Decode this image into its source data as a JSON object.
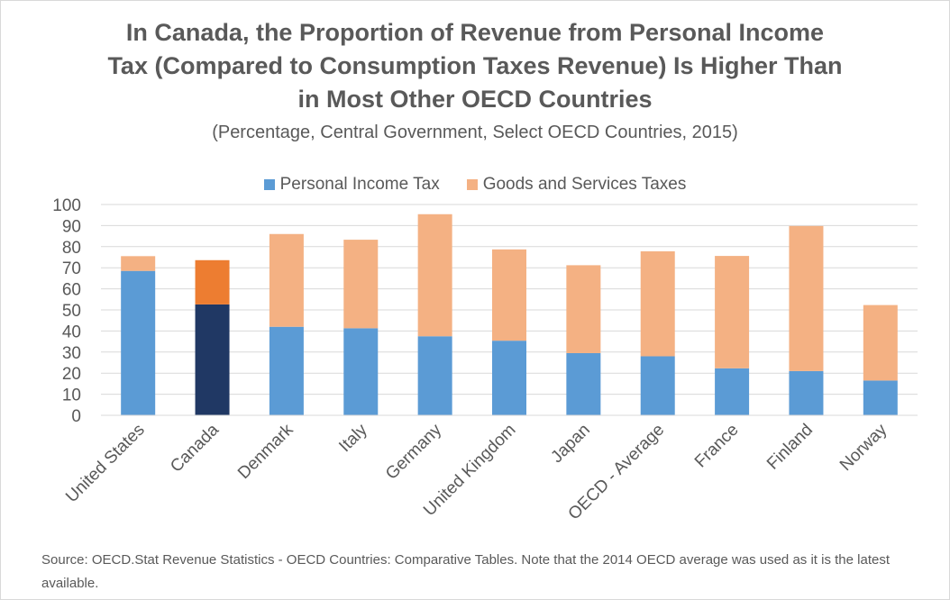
{
  "colors": {
    "income": "#5b9bd5",
    "goods": "#f4b183",
    "income_highlight": "#203864",
    "goods_highlight": "#ed7d31",
    "grid": "#d9d9d9",
    "text": "#595959"
  },
  "chart_data": {
    "type": "bar",
    "stacked": true,
    "title": "In Canada, the Proportion of Revenue from Personal Income Tax (Compared to Consumption Taxes Revenue) Is Higher Than in Most Other OECD Countries",
    "title_lines": [
      "In Canada, the Proportion of Revenue from Personal Income",
      "Tax (Compared to Consumption Taxes Revenue) Is Higher Than",
      "in Most Other OECD Countries"
    ],
    "subtitle": "(Percentage, Central Government, Select OECD Countries, 2015)",
    "categories": [
      "United States",
      "Canada",
      "Denmark",
      "Italy",
      "Germany",
      "United Kingdom",
      "Japan",
      "OECD - Average",
      "France",
      "Finland",
      "Norway"
    ],
    "highlight_category": "Canada",
    "series": [
      {
        "name": "Personal Income Tax",
        "values": [
          68.5,
          52.6,
          42.0,
          41.3,
          37.5,
          35.4,
          29.5,
          28.0,
          22.3,
          21.0,
          16.5
        ]
      },
      {
        "name": "Goods and Services Taxes",
        "values": [
          7.0,
          21.0,
          44.0,
          42.0,
          57.9,
          43.3,
          41.7,
          49.8,
          53.3,
          68.8,
          35.8
        ]
      }
    ],
    "ylim": [
      0,
      100
    ],
    "yticks": [
      0,
      10,
      20,
      30,
      40,
      50,
      60,
      70,
      80,
      90,
      100
    ],
    "grid": true,
    "legend_position": "top"
  },
  "source": "Source: OECD.Stat Revenue Statistics - OECD Countries: Comparative Tables. Note that the 2014 OECD average was used as it is the latest available."
}
